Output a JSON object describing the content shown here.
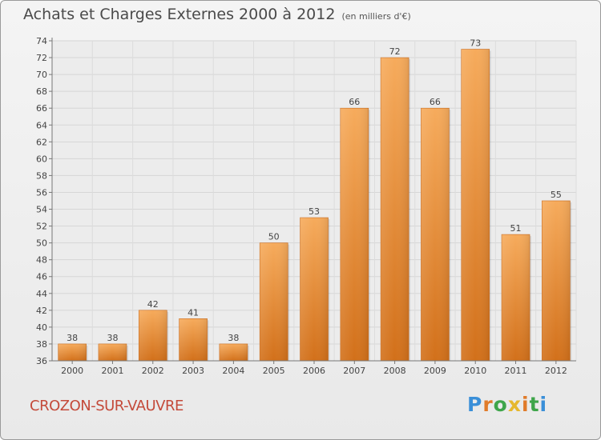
{
  "header": {
    "title": "Achats et Charges Externes 2000 à 2012",
    "subtitle": "(en milliers d'€)"
  },
  "footer": {
    "commune": "CROZON-SUR-VAUVRE",
    "logo_text": "Proxiti"
  },
  "colors": {
    "bar": "#e98a2e",
    "bar_light": "#f6b064",
    "bar_dark": "#cf6e17",
    "commune": "#c44a3a"
  },
  "chart_data": {
    "type": "bar",
    "title": "Achats et Charges Externes 2000 à 2012",
    "subtitle": "(en milliers d'€)",
    "categories": [
      "2000",
      "2001",
      "2002",
      "2003",
      "2004",
      "2005",
      "2006",
      "2007",
      "2008",
      "2009",
      "2010",
      "2011",
      "2012"
    ],
    "values": [
      38,
      38,
      42,
      41,
      38,
      50,
      53,
      66,
      72,
      66,
      73,
      51,
      55
    ],
    "ylim": [
      36,
      74
    ],
    "yticks": [
      36,
      38,
      40,
      42,
      44,
      46,
      48,
      50,
      52,
      54,
      56,
      58,
      60,
      62,
      64,
      66,
      68,
      70,
      72,
      74
    ],
    "grid": true,
    "xlabel": "",
    "ylabel": ""
  }
}
